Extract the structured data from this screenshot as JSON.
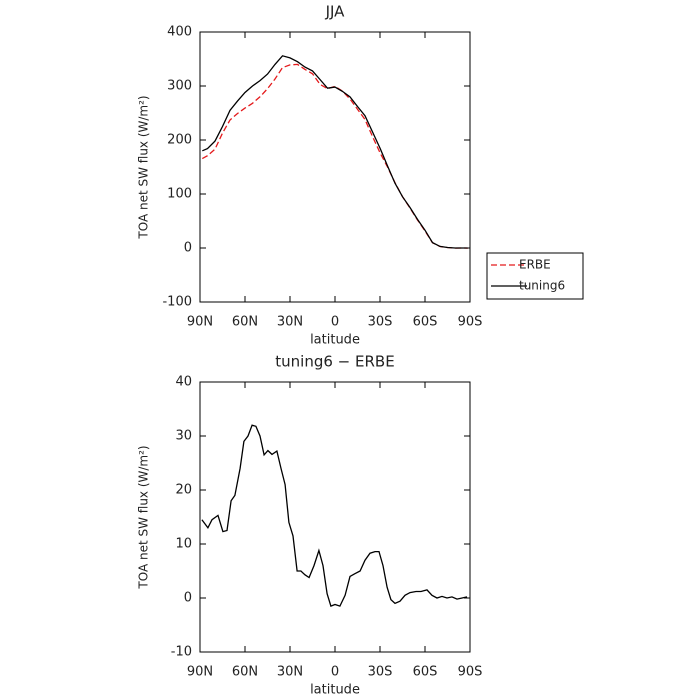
{
  "chart_data": [
    {
      "type": "line",
      "title": "JJA",
      "x_label": "latitude",
      "y_label": "TOA net SW flux (W/m²)",
      "x": [
        88.5,
        85,
        80,
        75,
        70,
        65,
        60,
        55,
        50,
        45,
        40,
        35,
        30,
        25,
        20,
        15,
        10,
        5,
        0,
        -5,
        -10,
        -15,
        -20,
        -25,
        -30,
        -35,
        -40,
        -45,
        -50,
        -55,
        -60,
        -65,
        -70,
        -75,
        -80,
        -85,
        -88.5
      ],
      "series": [
        {
          "name": "ERBE",
          "color": "#e41a1c",
          "dash": true,
          "values": [
            165.5,
            171,
            183,
            212.7,
            237,
            249,
            259,
            268,
            280,
            295,
            313,
            334,
            339,
            340,
            330.7,
            322.5,
            303.2,
            295,
            299.2,
            290.5,
            276,
            257,
            238,
            206.4,
            176.5,
            150,
            121,
            95,
            74,
            51.8,
            31.6,
            9.6,
            2.7,
            1,
            -0.2,
            0,
            -0.2
          ]
        },
        {
          "name": "tuning6",
          "color": "#000000",
          "dash": false,
          "values": [
            180,
            184,
            198,
            225,
            255,
            272,
            288,
            300,
            310,
            322,
            340,
            356,
            352,
            345,
            335,
            328,
            312,
            296,
            298,
            290,
            280,
            262,
            245,
            215,
            185,
            152,
            120,
            95,
            75,
            53,
            33,
            10,
            3,
            1,
            0,
            0,
            0
          ]
        }
      ],
      "xlim": [
        90,
        -90
      ],
      "xticks": [
        {
          "value": 90,
          "label": "90N"
        },
        {
          "value": 60,
          "label": "60N"
        },
        {
          "value": 30,
          "label": "30N"
        },
        0,
        {
          "value": -30,
          "label": "30S"
        },
        {
          "value": -60,
          "label": "60S"
        },
        {
          "value": -90,
          "label": "90S"
        }
      ],
      "ylim": [
        -100,
        400
      ],
      "yticks": [
        400,
        300,
        200,
        100,
        0,
        -100
      ],
      "legend": "outside-right"
    },
    {
      "type": "line",
      "title": "tuning6 − ERBE",
      "x_label": "latitude",
      "y_label": "TOA net SW flux (W/m²)",
      "x": [
        88.7,
        84.7,
        82,
        78,
        74.7,
        72,
        69.3,
        66.7,
        63.3,
        60.7,
        58,
        55.3,
        52.7,
        50,
        47.3,
        44.7,
        42,
        38.7,
        36,
        33.3,
        30.7,
        28,
        25.3,
        22.7,
        20,
        17.3,
        14,
        10.7,
        8,
        5.3,
        2.7,
        0,
        -3.3,
        -6.7,
        -10,
        -13.3,
        -16.7,
        -20,
        -23.3,
        -26.7,
        -29.3,
        -32,
        -34.7,
        -37.3,
        -40,
        -43.3,
        -46.7,
        -50,
        -54,
        -57.3,
        -61.3,
        -64.7,
        -68,
        -71.3,
        -74.7,
        -78,
        -81.3,
        -84.7,
        -88
      ],
      "series": [
        {
          "color": "#000000",
          "dash": false,
          "values": [
            14.5,
            13,
            14.5,
            15.3,
            12.3,
            12.5,
            18,
            19,
            24,
            29,
            30,
            32,
            31.8,
            30,
            26.5,
            27.3,
            26.6,
            27.2,
            24,
            21,
            14,
            11.5,
            5,
            5,
            4.3,
            3.8,
            6,
            8.8,
            6,
            0.8,
            -1.5,
            -1.2,
            -1.5,
            0.5,
            4,
            4.5,
            5,
            7,
            8.3,
            8.6,
            8.6,
            6,
            2,
            -0.3,
            -1,
            -0.6,
            0.5,
            1,
            1.2,
            1.2,
            1.5,
            0.5,
            0,
            0.3,
            0,
            0.2,
            -0.2,
            0,
            0.2
          ]
        }
      ],
      "xlim": [
        90,
        -90
      ],
      "xticks": [
        {
          "value": 90,
          "label": "90N"
        },
        {
          "value": 60,
          "label": "60N"
        },
        {
          "value": 30,
          "label": "30N"
        },
        0,
        {
          "value": -30,
          "label": "30S"
        },
        {
          "value": -60,
          "label": "60S"
        },
        {
          "value": -90,
          "label": "90S"
        }
      ],
      "ylim": [
        -10,
        40
      ],
      "yticks": [
        40,
        30,
        20,
        10,
        0,
        -10
      ]
    }
  ]
}
